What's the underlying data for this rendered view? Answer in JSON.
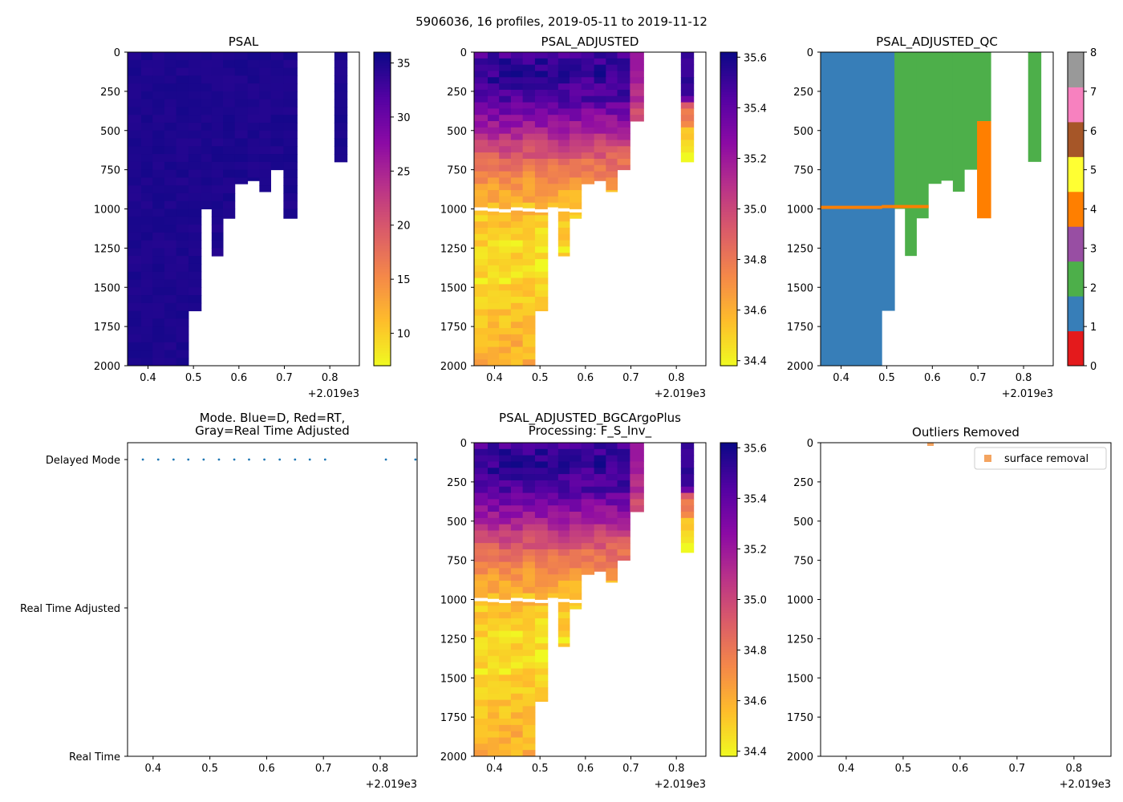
{
  "figure": {
    "suptitle": "5906036, 16 profiles, 2019-05-11 to 2019-11-12"
  },
  "colors": {
    "mode_dots": "#1f77b4",
    "outlier": "#f4a460",
    "qc": [
      "#e41a1c",
      "#377eb8",
      "#4daf4a",
      "#984ea3",
      "#ff7f00",
      "#ffff33",
      "#a65628",
      "#f781bf",
      "#999999"
    ]
  },
  "chart_data": [
    {
      "id": "psal",
      "type": "heatmap",
      "title": "PSAL",
      "xlim": [
        2019.355,
        2019.865
      ],
      "xticks": [
        2019.4,
        2019.5,
        2019.6,
        2019.7,
        2019.8
      ],
      "xtick_labels": [
        "0.4",
        "0.5",
        "0.6",
        "0.7",
        "0.8"
      ],
      "x_offset": "+2.019e3",
      "ylim": [
        2000,
        0
      ],
      "yticks": [
        0,
        250,
        500,
        750,
        1000,
        1250,
        1500,
        1750,
        2000
      ],
      "ytick_labels": [
        "0",
        "250",
        "500",
        "750",
        "1000",
        "1250",
        "1500",
        "1750",
        "2000"
      ],
      "colormap": "plasma_r",
      "colorbar": {
        "range": [
          7,
          36
        ],
        "ticks": [
          10,
          15,
          20,
          25,
          30,
          35
        ],
        "tick_labels": [
          "10",
          "15",
          "20",
          "25",
          "30",
          "35"
        ]
      },
      "profiles": [
        {
          "x0": 2019.355,
          "x1": 2019.385,
          "max_depth": 2000
        },
        {
          "x0": 2019.385,
          "x1": 2019.41,
          "max_depth": 2000
        },
        {
          "x0": 2019.41,
          "x1": 2019.436,
          "max_depth": 2000
        },
        {
          "x0": 2019.436,
          "x1": 2019.462,
          "max_depth": 2000
        },
        {
          "x0": 2019.462,
          "x1": 2019.489,
          "max_depth": 2000
        },
        {
          "x0": 2019.489,
          "x1": 2019.517,
          "max_depth": 1650
        },
        {
          "x0": 2019.517,
          "x1": 2019.54,
          "max_depth": 1000
        },
        {
          "x0": 2019.54,
          "x1": 2019.565,
          "max_depth": 1300
        },
        {
          "x0": 2019.565,
          "x1": 2019.591,
          "max_depth": 1060
        },
        {
          "x0": 2019.591,
          "x1": 2019.619,
          "max_depth": 840
        },
        {
          "x0": 2019.619,
          "x1": 2019.645,
          "max_depth": 820
        },
        {
          "x0": 2019.645,
          "x1": 2019.67,
          "max_depth": 890
        },
        {
          "x0": 2019.67,
          "x1": 2019.698,
          "max_depth": 750
        },
        {
          "x0": 2019.698,
          "x1": 2019.728,
          "max_depth": 1060
        },
        {
          "x0": 2019.81,
          "x1": 2019.838,
          "max_depth": 700
        }
      ]
    },
    {
      "id": "psal_adj",
      "type": "heatmap",
      "title": "PSAL_ADJUSTED",
      "xlim": [
        2019.355,
        2019.865
      ],
      "xticks": [
        2019.4,
        2019.5,
        2019.6,
        2019.7,
        2019.8
      ],
      "xtick_labels": [
        "0.4",
        "0.5",
        "0.6",
        "0.7",
        "0.8"
      ],
      "x_offset": "+2.019e3",
      "ylim": [
        2000,
        0
      ],
      "yticks": [
        0,
        250,
        500,
        750,
        1000,
        1250,
        1500,
        1750,
        2000
      ],
      "ytick_labels": [
        "0",
        "250",
        "500",
        "750",
        "1000",
        "1250",
        "1500",
        "1750",
        "2000"
      ],
      "colormap": "plasma_r",
      "colorbar": {
        "range": [
          34.38,
          35.62
        ],
        "ticks": [
          34.4,
          34.6,
          34.8,
          35.0,
          35.2,
          35.4,
          35.6
        ],
        "tick_labels": [
          "34.4",
          "34.6",
          "34.8",
          "35.0",
          "35.2",
          "35.4",
          "35.6"
        ]
      },
      "gap_depth": 990,
      "salinity_profile": [
        {
          "depth": 0,
          "value": 35.45
        },
        {
          "depth": 100,
          "value": 35.55
        },
        {
          "depth": 300,
          "value": 35.45
        },
        {
          "depth": 500,
          "value": 35.15
        },
        {
          "depth": 700,
          "value": 34.85
        },
        {
          "depth": 900,
          "value": 34.62
        },
        {
          "depth": 1100,
          "value": 34.5
        },
        {
          "depth": 1400,
          "value": 34.45
        },
        {
          "depth": 1700,
          "value": 34.55
        },
        {
          "depth": 2000,
          "value": 34.6
        }
      ],
      "profiles": [
        {
          "x0": 2019.355,
          "x1": 2019.385,
          "max_depth": 2000
        },
        {
          "x0": 2019.385,
          "x1": 2019.41,
          "max_depth": 2000
        },
        {
          "x0": 2019.41,
          "x1": 2019.436,
          "max_depth": 2000
        },
        {
          "x0": 2019.436,
          "x1": 2019.462,
          "max_depth": 2000
        },
        {
          "x0": 2019.462,
          "x1": 2019.489,
          "max_depth": 2000
        },
        {
          "x0": 2019.489,
          "x1": 2019.517,
          "max_depth": 1650
        },
        {
          "x0": 2019.517,
          "x1": 2019.54,
          "max_depth": 1000
        },
        {
          "x0": 2019.54,
          "x1": 2019.565,
          "max_depth": 1300
        },
        {
          "x0": 2019.565,
          "x1": 2019.591,
          "max_depth": 1060
        },
        {
          "x0": 2019.591,
          "x1": 2019.619,
          "max_depth": 840
        },
        {
          "x0": 2019.619,
          "x1": 2019.645,
          "max_depth": 820
        },
        {
          "x0": 2019.645,
          "x1": 2019.67,
          "max_depth": 890
        },
        {
          "x0": 2019.67,
          "x1": 2019.698,
          "max_depth": 750
        },
        {
          "x0": 2019.698,
          "x1": 2019.728,
          "max_depth": 440
        },
        {
          "x0": 2019.81,
          "x1": 2019.838,
          "max_depth": 700
        }
      ]
    },
    {
      "id": "psal_adj_qc",
      "type": "heatmap",
      "title": "PSAL_ADJUSTED_QC",
      "xlim": [
        2019.355,
        2019.865
      ],
      "xticks": [
        2019.4,
        2019.5,
        2019.6,
        2019.7,
        2019.8
      ],
      "xtick_labels": [
        "0.4",
        "0.5",
        "0.6",
        "0.7",
        "0.8"
      ],
      "x_offset": "+2.019e3",
      "ylim": [
        2000,
        0
      ],
      "yticks": [
        0,
        250,
        500,
        750,
        1000,
        1250,
        1500,
        1750,
        2000
      ],
      "ytick_labels": [
        "0",
        "250",
        "500",
        "750",
        "1000",
        "1250",
        "1500",
        "1750",
        "2000"
      ],
      "colorbar": {
        "range": [
          0,
          8
        ],
        "ticks": [
          0,
          1,
          2,
          3,
          4,
          5,
          6,
          7,
          8
        ],
        "tick_labels": [
          "0",
          "1",
          "2",
          "3",
          "4",
          "5",
          "6",
          "7",
          "8"
        ]
      },
      "blocks": [
        {
          "x0": 2019.355,
          "x1": 2019.489,
          "d0": 0,
          "d1": 2000,
          "qc": 1
        },
        {
          "x0": 2019.489,
          "x1": 2019.517,
          "d0": 0,
          "d1": 1650,
          "qc": 1
        },
        {
          "x0": 2019.517,
          "x1": 2019.54,
          "d0": 0,
          "d1": 1000,
          "qc": 2
        },
        {
          "x0": 2019.54,
          "x1": 2019.565,
          "d0": 0,
          "d1": 1300,
          "qc": 2
        },
        {
          "x0": 2019.565,
          "x1": 2019.591,
          "d0": 0,
          "d1": 1060,
          "qc": 2
        },
        {
          "x0": 2019.591,
          "x1": 2019.619,
          "d0": 0,
          "d1": 840,
          "qc": 2
        },
        {
          "x0": 2019.619,
          "x1": 2019.645,
          "d0": 0,
          "d1": 820,
          "qc": 2
        },
        {
          "x0": 2019.645,
          "x1": 2019.67,
          "d0": 0,
          "d1": 890,
          "qc": 2
        },
        {
          "x0": 2019.67,
          "x1": 2019.698,
          "d0": 0,
          "d1": 750,
          "qc": 2
        },
        {
          "x0": 2019.698,
          "x1": 2019.728,
          "d0": 0,
          "d1": 440,
          "qc": 2
        },
        {
          "x0": 2019.698,
          "x1": 2019.728,
          "d0": 440,
          "d1": 1060,
          "qc": 4
        },
        {
          "x0": 2019.81,
          "x1": 2019.838,
          "d0": 0,
          "d1": 700,
          "qc": 2
        },
        {
          "x0": 2019.355,
          "x1": 2019.489,
          "d0": 980,
          "d1": 1000,
          "qc": 4
        },
        {
          "x0": 2019.489,
          "x1": 2019.591,
          "d0": 975,
          "d1": 995,
          "qc": 4
        }
      ]
    },
    {
      "id": "mode",
      "type": "scatter",
      "title": "Mode. Blue=D, Red=RT,\nGray=Real Time Adjusted",
      "title_lines": [
        "Mode. Blue=D, Red=RT,",
        "Gray=Real Time Adjusted"
      ],
      "xlim": [
        2019.355,
        2019.865
      ],
      "xticks": [
        2019.4,
        2019.5,
        2019.6,
        2019.7,
        2019.8
      ],
      "xtick_labels": [
        "0.4",
        "0.5",
        "0.6",
        "0.7",
        "0.8"
      ],
      "x_offset": "+2.019e3",
      "y_categories": [
        "Delayed Mode",
        "Real Time Adjusted",
        "Real Time"
      ],
      "points": [
        {
          "x": 2019.382,
          "mode": "Delayed Mode"
        },
        {
          "x": 2019.409,
          "mode": "Delayed Mode"
        },
        {
          "x": 2019.436,
          "mode": "Delayed Mode"
        },
        {
          "x": 2019.462,
          "mode": "Delayed Mode"
        },
        {
          "x": 2019.489,
          "mode": "Delayed Mode"
        },
        {
          "x": 2019.516,
          "mode": "Delayed Mode"
        },
        {
          "x": 2019.543,
          "mode": "Delayed Mode"
        },
        {
          "x": 2019.569,
          "mode": "Delayed Mode"
        },
        {
          "x": 2019.596,
          "mode": "Delayed Mode"
        },
        {
          "x": 2019.623,
          "mode": "Delayed Mode"
        },
        {
          "x": 2019.65,
          "mode": "Delayed Mode"
        },
        {
          "x": 2019.676,
          "mode": "Delayed Mode"
        },
        {
          "x": 2019.703,
          "mode": "Delayed Mode"
        },
        {
          "x": 2019.81,
          "mode": "Delayed Mode"
        },
        {
          "x": 2019.862,
          "mode": "Delayed Mode"
        }
      ]
    },
    {
      "id": "bgc",
      "type": "heatmap",
      "title": "PSAL_ADJUSTED_BGCArgoPlus\nProcessing: F_S_Inv_",
      "title_lines": [
        "PSAL_ADJUSTED_BGCArgoPlus",
        "Processing: F_S_Inv_"
      ],
      "same_as": "psal_adj",
      "xlim": [
        2019.355,
        2019.865
      ],
      "xticks": [
        2019.4,
        2019.5,
        2019.6,
        2019.7,
        2019.8
      ],
      "xtick_labels": [
        "0.4",
        "0.5",
        "0.6",
        "0.7",
        "0.8"
      ],
      "x_offset": "+2.019e3",
      "ylim": [
        2000,
        0
      ],
      "yticks": [
        0,
        250,
        500,
        750,
        1000,
        1250,
        1500,
        1750,
        2000
      ],
      "ytick_labels": [
        "0",
        "250",
        "500",
        "750",
        "1000",
        "1250",
        "1500",
        "1750",
        "2000"
      ],
      "colormap": "plasma_r",
      "colorbar": {
        "range": [
          34.38,
          35.62
        ],
        "ticks": [
          34.4,
          34.6,
          34.8,
          35.0,
          35.2,
          35.4,
          35.6
        ],
        "tick_labels": [
          "34.4",
          "34.6",
          "34.8",
          "35.0",
          "35.2",
          "35.4",
          "35.6"
        ]
      }
    },
    {
      "id": "outliers",
      "type": "scatter",
      "title": "Outliers Removed",
      "xlim": [
        2019.355,
        2019.865
      ],
      "xticks": [
        2019.4,
        2019.5,
        2019.6,
        2019.7,
        2019.8
      ],
      "xtick_labels": [
        "0.4",
        "0.5",
        "0.6",
        "0.7",
        "0.8"
      ],
      "x_offset": "+2.019e3",
      "ylim": [
        2000,
        0
      ],
      "yticks": [
        0,
        250,
        500,
        750,
        1000,
        1250,
        1500,
        1750,
        2000
      ],
      "ytick_labels": [
        "0",
        "250",
        "500",
        "750",
        "1000",
        "1250",
        "1500",
        "1750",
        "2000"
      ],
      "legend": {
        "label": "surface removal",
        "placement": "top-right"
      },
      "points": [
        {
          "x": 2019.548,
          "depth": 5,
          "label": "surface removal"
        }
      ]
    }
  ]
}
